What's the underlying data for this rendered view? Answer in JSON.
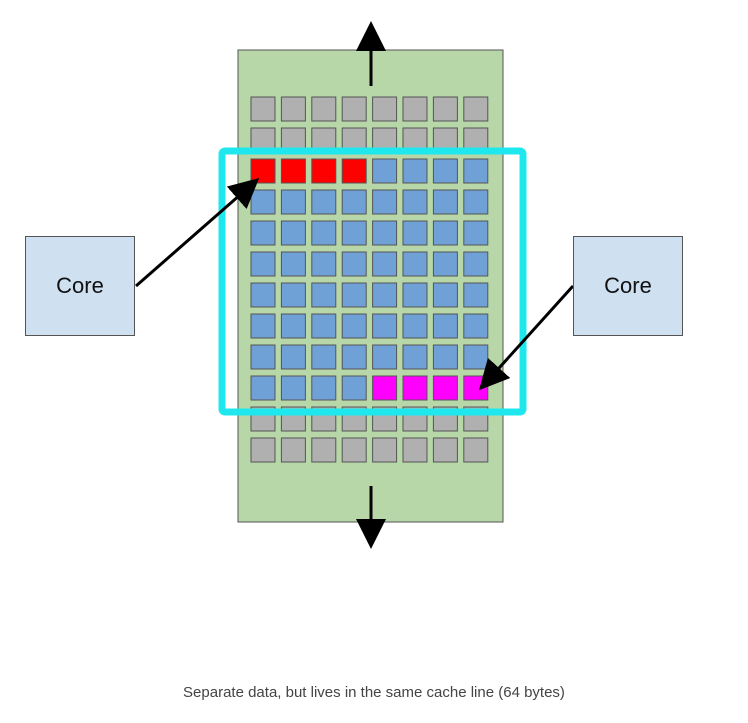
{
  "cores": {
    "left_label": "Core",
    "right_label": "Core"
  },
  "caption": "Separate data, but lives in the same cache line (64 bytes)",
  "memory_grid": {
    "columns": 8,
    "rows": [
      [
        "gray",
        "gray",
        "gray",
        "gray",
        "gray",
        "gray",
        "gray",
        "gray"
      ],
      [
        "gray",
        "gray",
        "gray",
        "gray",
        "gray",
        "gray",
        "gray",
        "gray"
      ],
      [
        "red",
        "red",
        "red",
        "red",
        "blue",
        "blue",
        "blue",
        "blue"
      ],
      [
        "blue",
        "blue",
        "blue",
        "blue",
        "blue",
        "blue",
        "blue",
        "blue"
      ],
      [
        "blue",
        "blue",
        "blue",
        "blue",
        "blue",
        "blue",
        "blue",
        "blue"
      ],
      [
        "blue",
        "blue",
        "blue",
        "blue",
        "blue",
        "blue",
        "blue",
        "blue"
      ],
      [
        "blue",
        "blue",
        "blue",
        "blue",
        "blue",
        "blue",
        "blue",
        "blue"
      ],
      [
        "blue",
        "blue",
        "blue",
        "blue",
        "blue",
        "blue",
        "blue",
        "blue"
      ],
      [
        "blue",
        "blue",
        "blue",
        "blue",
        "blue",
        "blue",
        "blue",
        "blue"
      ],
      [
        "blue",
        "blue",
        "blue",
        "blue",
        "magenta",
        "magenta",
        "magenta",
        "magenta"
      ],
      [
        "gray",
        "gray",
        "gray",
        "gray",
        "gray",
        "gray",
        "gray",
        "gray"
      ],
      [
        "gray",
        "gray",
        "gray",
        "gray",
        "gray",
        "gray",
        "gray",
        "gray"
      ]
    ]
  },
  "colors": {
    "memory_background": "#b7d7a8",
    "cache_line_outline": "#1ee8ee",
    "cell_gray": "#b0b0b0",
    "cell_red": "#ff0000",
    "cell_blue": "#6fa0d6",
    "cell_magenta": "#ff00ff",
    "core_fill": "#cfe0f1",
    "arrow": "#000000"
  }
}
